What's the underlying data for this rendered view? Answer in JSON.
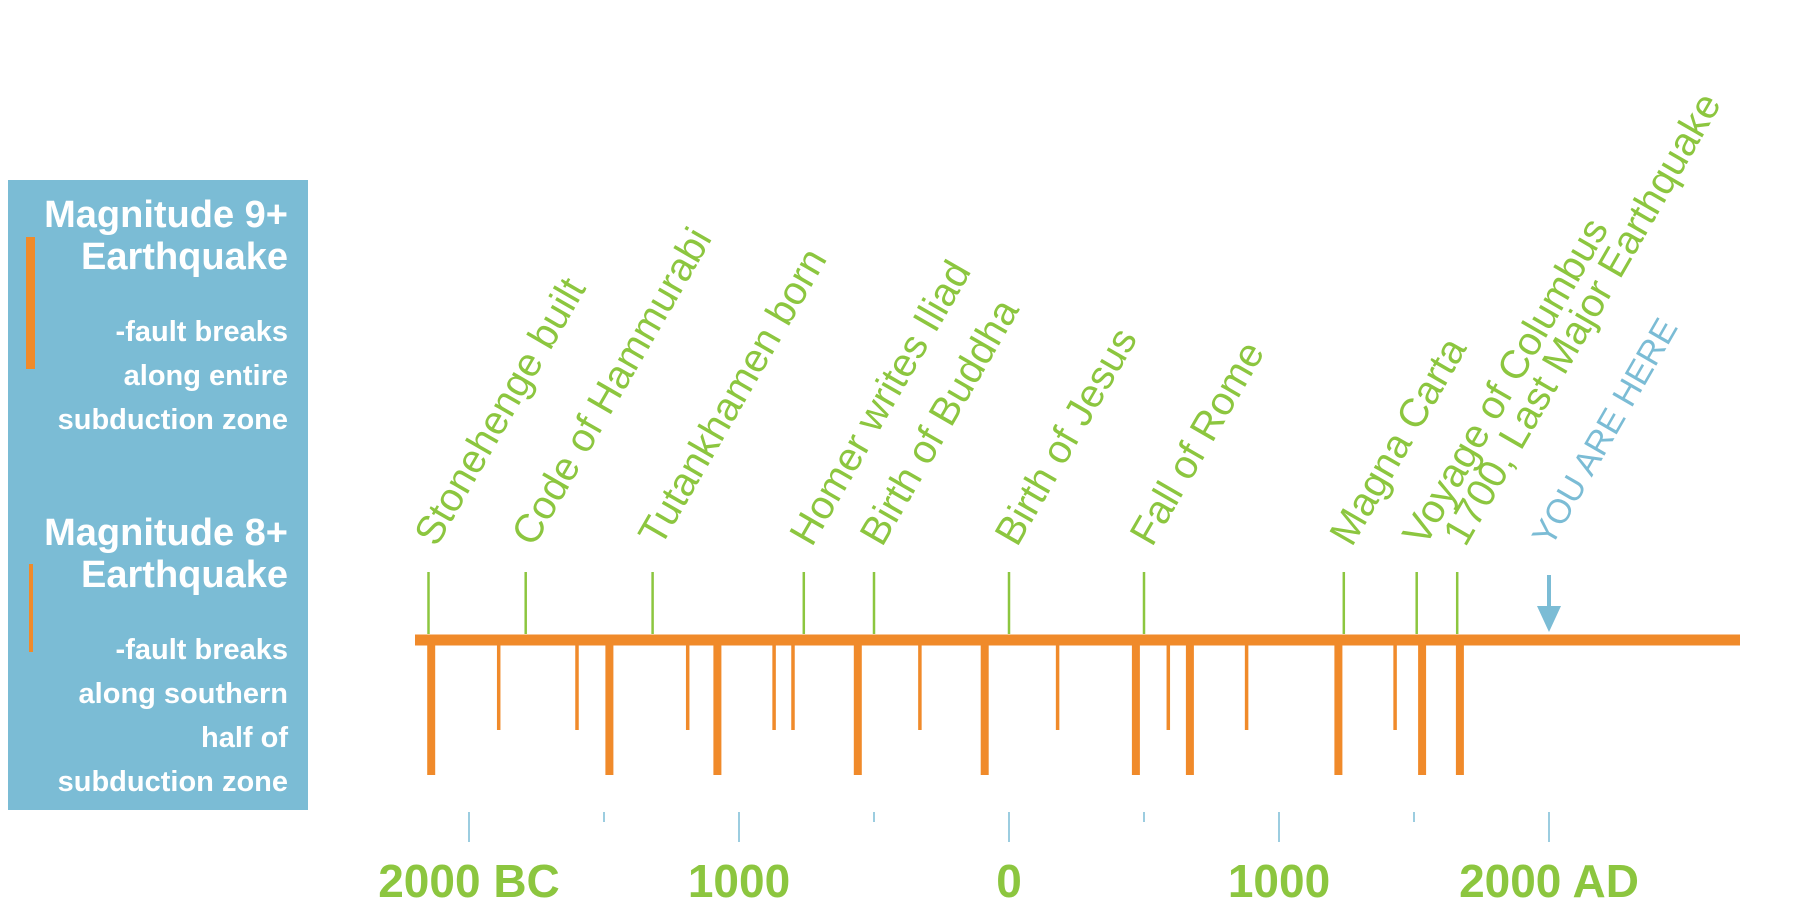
{
  "legend": {
    "items": [
      {
        "title_lines": [
          "Magnitude 9+",
          "Earthquake"
        ],
        "desc_lines": [
          "-fault breaks",
          "along entire",
          "subduction zone"
        ]
      },
      {
        "title_lines": [
          "Magnitude 8+",
          "Earthquake"
        ],
        "desc_lines": [
          "-fault breaks",
          "along southern",
          "half of",
          "subduction zone"
        ]
      }
    ]
  },
  "colors": {
    "panel": "#7bbcd5",
    "quake": "#f08a2a",
    "event": "#8cc63f",
    "here": "#7bbcd5",
    "tick": "#7bbcd5"
  },
  "axis": {
    "min_year": -2200,
    "max_year": 2800,
    "ticks": [
      {
        "year": -2000,
        "label": "2000 BC",
        "major": true
      },
      {
        "year": -1500,
        "label": "",
        "major": false
      },
      {
        "year": -1000,
        "label": "1000",
        "major": true
      },
      {
        "year": -500,
        "label": "",
        "major": false
      },
      {
        "year": 0,
        "label": "0",
        "major": true
      },
      {
        "year": 500,
        "label": "",
        "major": false
      },
      {
        "year": 1000,
        "label": "1000",
        "major": true
      },
      {
        "year": 1500,
        "label": "",
        "major": false
      },
      {
        "year": 2000,
        "label": "2000 AD",
        "major": true
      }
    ]
  },
  "events": [
    {
      "label": "Stonehenge built",
      "year": -2150
    },
    {
      "label": "Code of Hammurabi",
      "year": -1790
    },
    {
      "label": "Tutankhamen born",
      "year": -1320
    },
    {
      "label": "Homer writes Iliad",
      "year": -760
    },
    {
      "label": "Birth of Buddha",
      "year": -500
    },
    {
      "label": "Birth of Jesus",
      "year": 0
    },
    {
      "label": "Fall of Rome",
      "year": 500
    },
    {
      "label": "Magna Carta",
      "year": 1240
    },
    {
      "label": "Voyage of Columbus",
      "year": 1510
    },
    {
      "label": "1700, Last Major Earthquake",
      "year": 1660
    }
  ],
  "you_are_here": {
    "label": "YOU ARE HERE",
    "year": 2000
  },
  "earthquakes": [
    {
      "year": -2140,
      "magnitude": "9+"
    },
    {
      "year": -1890,
      "magnitude": "8+"
    },
    {
      "year": -1600,
      "magnitude": "8+"
    },
    {
      "year": -1480,
      "magnitude": "9+"
    },
    {
      "year": -1190,
      "magnitude": "8+"
    },
    {
      "year": -1080,
      "magnitude": "9+"
    },
    {
      "year": -870,
      "magnitude": "8+"
    },
    {
      "year": -800,
      "magnitude": "8+"
    },
    {
      "year": -560,
      "magnitude": "9+"
    },
    {
      "year": -330,
      "magnitude": "8+"
    },
    {
      "year": -90,
      "magnitude": "9+"
    },
    {
      "year": 180,
      "magnitude": "8+"
    },
    {
      "year": 470,
      "magnitude": "9+"
    },
    {
      "year": 590,
      "magnitude": "8+"
    },
    {
      "year": 670,
      "magnitude": "9+"
    },
    {
      "year": 880,
      "magnitude": "8+"
    },
    {
      "year": 1220,
      "magnitude": "9+"
    },
    {
      "year": 1430,
      "magnitude": "8+"
    },
    {
      "year": 1530,
      "magnitude": "9+"
    },
    {
      "year": 1670,
      "magnitude": "9+"
    }
  ]
}
